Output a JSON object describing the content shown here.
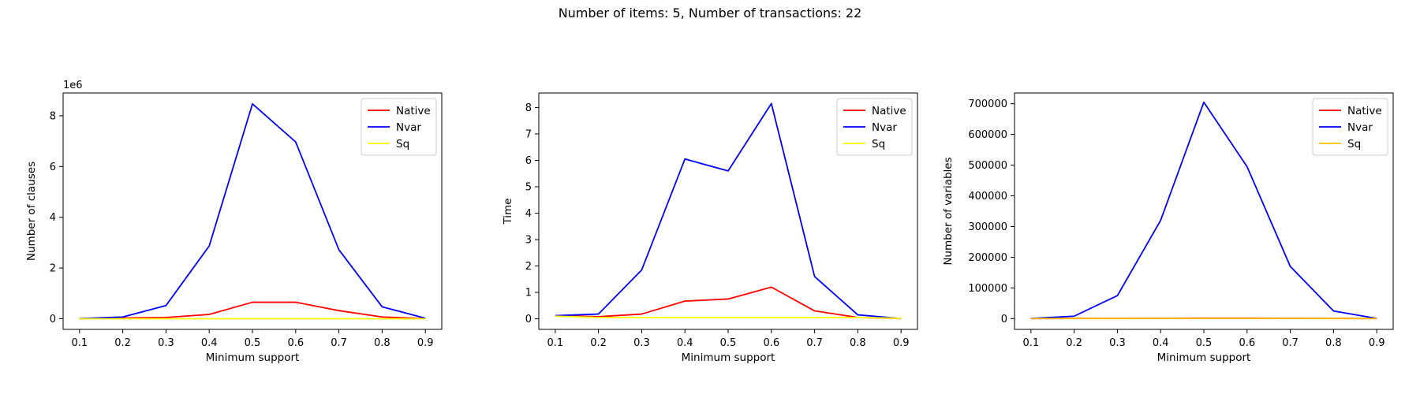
{
  "figure": {
    "title": "Number of items: 5, Number of transactions: 22"
  },
  "chart_data": [
    {
      "type": "line",
      "title": "",
      "xlabel": "Minimum support",
      "ylabel": "Number of clauses",
      "y_offset_label": "1e6",
      "x": [
        0.1,
        0.2,
        0.3,
        0.4,
        0.5,
        0.6,
        0.7,
        0.8,
        0.9
      ],
      "xlim": [
        0.062,
        0.938
      ],
      "ylim": [
        -0.42,
        8.9
      ],
      "y_scale_factor": 1000000,
      "xticks": [
        0.1,
        0.2,
        0.3,
        0.4,
        0.5,
        0.6,
        0.7,
        0.8,
        0.9
      ],
      "yticks": [
        0,
        2,
        4,
        6,
        8
      ],
      "grid": false,
      "legend": "top-right",
      "series": [
        {
          "name": "Native",
          "color": "#ff0000",
          "values": [
            0.005,
            0.03,
            0.05,
            0.17,
            0.65,
            0.65,
            0.32,
            0.07,
            0.005
          ]
        },
        {
          "name": "Nvar",
          "color": "#0000ff",
          "values": [
            0.005,
            0.07,
            0.52,
            2.87,
            8.47,
            6.97,
            2.72,
            0.47,
            0.02
          ]
        },
        {
          "name": "Sq",
          "color": "#ffff00",
          "values": [
            0.0,
            0.0,
            0.0,
            0.0,
            0.0,
            0.0,
            0.0,
            0.0,
            0.0
          ]
        }
      ]
    },
    {
      "type": "line",
      "title": "",
      "xlabel": "Minimum support",
      "ylabel": "Time",
      "x": [
        0.1,
        0.2,
        0.3,
        0.4,
        0.5,
        0.6,
        0.7,
        0.8,
        0.9
      ],
      "xlim": [
        0.062,
        0.938
      ],
      "ylim": [
        -0.4,
        8.55
      ],
      "xticks": [
        0.1,
        0.2,
        0.3,
        0.4,
        0.5,
        0.6,
        0.7,
        0.8,
        0.9
      ],
      "yticks": [
        0,
        1,
        2,
        3,
        4,
        5,
        6,
        7,
        8
      ],
      "grid": false,
      "legend": "top-right",
      "series": [
        {
          "name": "Native",
          "color": "#ff0000",
          "values": [
            0.12,
            0.08,
            0.18,
            0.67,
            0.75,
            1.2,
            0.3,
            0.05,
            0.01
          ]
        },
        {
          "name": "Nvar",
          "color": "#0000ff",
          "values": [
            0.12,
            0.18,
            1.85,
            6.05,
            5.6,
            8.15,
            1.6,
            0.15,
            0.01
          ]
        },
        {
          "name": "Sq",
          "color": "#ffff00",
          "values": [
            0.1,
            0.05,
            0.05,
            0.05,
            0.05,
            0.05,
            0.05,
            0.05,
            0.02
          ]
        }
      ]
    },
    {
      "type": "line",
      "title": "",
      "xlabel": "Minimum support",
      "ylabel": "Number of variables",
      "x": [
        0.1,
        0.2,
        0.3,
        0.4,
        0.5,
        0.6,
        0.7,
        0.8,
        0.9
      ],
      "xlim": [
        0.062,
        0.938
      ],
      "ylim": [
        -35000,
        735000
      ],
      "xticks": [
        0.1,
        0.2,
        0.3,
        0.4,
        0.5,
        0.6,
        0.7,
        0.8,
        0.9
      ],
      "yticks": [
        0,
        100000,
        200000,
        300000,
        400000,
        500000,
        600000,
        700000
      ],
      "grid": false,
      "legend": "top-right",
      "series": [
        {
          "name": "Native",
          "color": "#ff0000",
          "values": [
            500,
            800,
            1000,
            1200,
            1500,
            1500,
            1200,
            800,
            300
          ]
        },
        {
          "name": "Nvar",
          "color": "#0000ff",
          "values": [
            500,
            8000,
            75000,
            320000,
            705000,
            495000,
            170000,
            25000,
            500
          ]
        },
        {
          "name": "Sq",
          "color": "#ffc000",
          "values": [
            300,
            400,
            500,
            600,
            700,
            700,
            600,
            400,
            200
          ]
        }
      ]
    }
  ]
}
